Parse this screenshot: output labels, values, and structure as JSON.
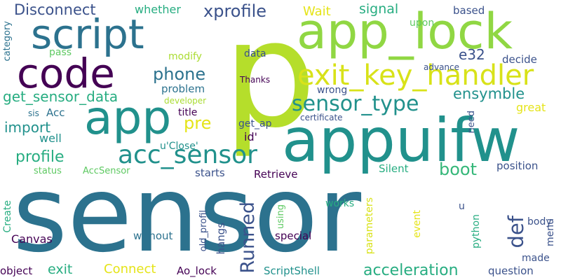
{
  "colors": {
    "background": "#ffffff",
    "dark_purple": "#440154",
    "indigo": "#3b528b",
    "blue": "#2c728e",
    "teal": "#21918c",
    "green": "#27ad81",
    "light_green": "#5ec962",
    "lime": "#aadc32",
    "yellow": "#e5e419"
  },
  "words": [
    {
      "key": "sensor",
      "text": "sensor",
      "color": "#2c728e"
    },
    {
      "key": "p",
      "text": "p",
      "color": "#b5de2b"
    },
    {
      "key": "appuifw",
      "text": "appuifw",
      "color": "#21918c"
    },
    {
      "key": "app_lock",
      "text": "app_lock",
      "color": "#90d743"
    },
    {
      "key": "script",
      "text": "script",
      "color": "#2c728e"
    },
    {
      "key": "code",
      "text": "code",
      "color": "#440154"
    },
    {
      "key": "app",
      "text": "app",
      "color": "#21918c"
    },
    {
      "key": "exit_key_handler",
      "text": "exit_key_handler",
      "color": "#d8e219"
    },
    {
      "key": "acc_sensor",
      "text": "acc_sensor",
      "color": "#21918c"
    },
    {
      "key": "sensor_type",
      "text": "sensor_type",
      "color": "#21918c"
    },
    {
      "key": "Disconnect",
      "text": "Disconnect",
      "color": "#3b528b"
    },
    {
      "key": "xprofile",
      "text": "xprofile",
      "color": "#3b528b"
    },
    {
      "key": "phone",
      "text": "phone",
      "color": "#2c728e"
    },
    {
      "key": "ensymble",
      "text": "ensymble",
      "color": "#21918c"
    },
    {
      "key": "get_sensor_data",
      "text": "get_sensor_data",
      "color": "#27ad81"
    },
    {
      "key": "import",
      "text": "import",
      "color": "#21918c"
    },
    {
      "key": "profile",
      "text": "profile",
      "color": "#27ad81"
    },
    {
      "key": "boot",
      "text": "boot",
      "color": "#35b779"
    },
    {
      "key": "Runned",
      "text": "Runned",
      "color": "#3b528b"
    },
    {
      "key": "def",
      "text": "def",
      "color": "#3b528b"
    },
    {
      "key": "acceleration",
      "text": "acceleration",
      "color": "#27ad81"
    },
    {
      "key": "e32",
      "text": "e32",
      "color": "#3b528b"
    },
    {
      "key": "signal",
      "text": "signal",
      "color": "#27ad81"
    },
    {
      "key": "Wait",
      "text": "Wait",
      "color": "#e5e419"
    },
    {
      "key": "whether",
      "text": "whether",
      "color": "#27ad81"
    },
    {
      "key": "based",
      "text": "based",
      "color": "#3b528b"
    },
    {
      "key": "upon",
      "text": "upon",
      "color": "#5ec962"
    },
    {
      "key": "data",
      "text": "data",
      "color": "#3b528b"
    },
    {
      "key": "decide",
      "text": "decide",
      "color": "#3b528b"
    },
    {
      "key": "advance",
      "text": "advance",
      "color": "#3b528b"
    },
    {
      "key": "Thanks",
      "text": "Thanks",
      "color": "#440154"
    },
    {
      "key": "modify",
      "text": "modify",
      "color": "#aadc32"
    },
    {
      "key": "pass",
      "text": "pass",
      "color": "#5ec962"
    },
    {
      "key": "problem",
      "text": "problem",
      "color": "#2c728e"
    },
    {
      "key": "developer",
      "text": "developer",
      "color": "#aadc32"
    },
    {
      "key": "wrong",
      "text": "wrong",
      "color": "#3b528b"
    },
    {
      "key": "great",
      "text": "great",
      "color": "#e5e419"
    },
    {
      "key": "title",
      "text": "title",
      "color": "#440154"
    },
    {
      "key": "pre",
      "text": "pre",
      "color": "#e5e419"
    },
    {
      "key": "sis",
      "text": "sis",
      "color": "#2c728e"
    },
    {
      "key": "Acc",
      "text": "Acc",
      "color": "#2c728e"
    },
    {
      "key": "need",
      "text": "need",
      "color": "#3b528b"
    },
    {
      "key": "certificate",
      "text": "certificate",
      "color": "#3b528b"
    },
    {
      "key": "get_ap",
      "text": "get_ap",
      "color": "#3b528b"
    },
    {
      "key": "id",
      "text": "id'",
      "color": "#440154"
    },
    {
      "key": "well",
      "text": "well",
      "color": "#21918c"
    },
    {
      "key": "u_Close",
      "text": "u'Close'",
      "color": "#21918c"
    },
    {
      "key": "status",
      "text": "status",
      "color": "#5ec962"
    },
    {
      "key": "AccSensor",
      "text": "AccSensor",
      "color": "#5ec962"
    },
    {
      "key": "starts",
      "text": "starts",
      "color": "#3b528b"
    },
    {
      "key": "Retrieve",
      "text": "Retrieve",
      "color": "#440154"
    },
    {
      "key": "Silent",
      "text": "Silent",
      "color": "#27ad81"
    },
    {
      "key": "position",
      "text": "position",
      "color": "#3b528b"
    },
    {
      "key": "category",
      "text": "category",
      "color": "#2c728e"
    },
    {
      "key": "Create",
      "text": "Create",
      "color": "#27ad81"
    },
    {
      "key": "parameters",
      "text": "parameters",
      "color": "#d8e219"
    },
    {
      "key": "using",
      "text": "using",
      "color": "#5ec962"
    },
    {
      "key": "works",
      "text": "works",
      "color": "#27ad81"
    },
    {
      "key": "event",
      "text": "event",
      "color": "#e5e419"
    },
    {
      "key": "u",
      "text": "u",
      "color": "#3b528b"
    },
    {
      "key": "python",
      "text": "python",
      "color": "#27ad81"
    },
    {
      "key": "body",
      "text": "body",
      "color": "#3b528b"
    },
    {
      "key": "menu",
      "text": "menu",
      "color": "#3b528b"
    },
    {
      "key": "Canvas",
      "text": "Canvas",
      "color": "#440154"
    },
    {
      "key": "without",
      "text": "without",
      "color": "#2c728e"
    },
    {
      "key": "old_profil",
      "text": "old_profil",
      "color": "#3b528b"
    },
    {
      "key": "hangs",
      "text": "hangs",
      "color": "#3b528b"
    },
    {
      "key": "special",
      "text": "special",
      "color": "#440154"
    },
    {
      "key": "made",
      "text": "made",
      "color": "#3b528b"
    },
    {
      "key": "object",
      "text": "object",
      "color": "#440154"
    },
    {
      "key": "exit",
      "text": "exit",
      "color": "#27ad81"
    },
    {
      "key": "Connect",
      "text": "Connect",
      "color": "#e5e419"
    },
    {
      "key": "Ao_lock",
      "text": "Ao_lock",
      "color": "#440154"
    },
    {
      "key": "ScriptShell",
      "text": "ScriptShell",
      "color": "#21918c"
    },
    {
      "key": "question",
      "text": "question",
      "color": "#3b528b"
    }
  ]
}
